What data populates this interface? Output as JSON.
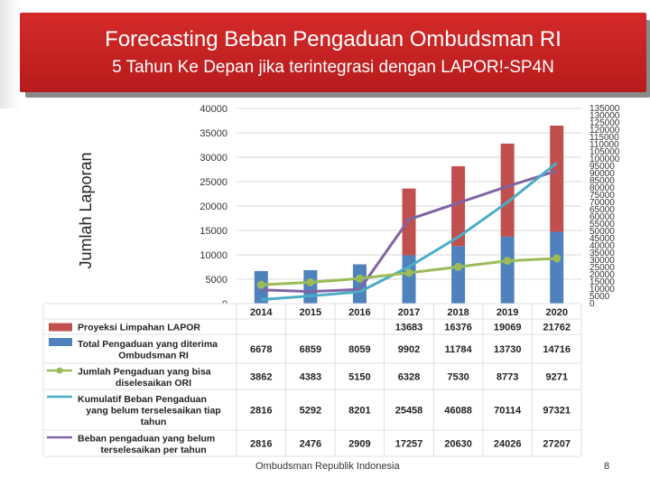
{
  "slide": {
    "title": "Forecasting Beban Pengaduan Ombudsman RI",
    "subtitle": "5 Tahun Ke Depan jika terintegrasi dengan LAPOR!-SP4N",
    "footer_org": "Ombudsman Republik Indonesia",
    "page_number": "8"
  },
  "chart_data": {
    "type": "bar",
    "ylabel": "Jumlah Laporan",
    "categories": [
      "2014",
      "2015",
      "2016",
      "2017",
      "2018",
      "2019",
      "2020"
    ],
    "left_axis": {
      "ylim": [
        0,
        40000
      ],
      "ticks": [
        "0",
        "5000",
        "10000",
        "15000",
        "20000",
        "25000",
        "30000",
        "35000",
        "40000"
      ]
    },
    "right_axis": {
      "ylim": [
        0,
        135000
      ],
      "ticks": [
        "0",
        "5000",
        "10000",
        "15000",
        "20000",
        "25000",
        "30000",
        "35000",
        "40000",
        "45000",
        "50000",
        "55000",
        "60000",
        "65000",
        "70000",
        "75000",
        "80000",
        "85000",
        "90000",
        "95000",
        "100000",
        "105000",
        "110000",
        "115000",
        "120000",
        "125000",
        "130000",
        "135000"
      ]
    },
    "series": [
      {
        "key": "proyeksi",
        "name": "Proyeksi Limpahan LAPOR",
        "kind": "stacked-bar",
        "color": "#c0504d",
        "axis": "left",
        "values": [
          null,
          null,
          null,
          13683,
          16376,
          19069,
          21762
        ],
        "labels": [
          "",
          "",
          "",
          "13683",
          "16376",
          "19069",
          "21762"
        ]
      },
      {
        "key": "total",
        "name": "Total Pengaduan yang diterima Ombudsman RI",
        "kind": "bar",
        "color": "#4f81bd",
        "axis": "left",
        "values": [
          6678,
          6859,
          8059,
          9902,
          11784,
          13730,
          14716
        ],
        "labels": [
          "6678",
          "6859",
          "8059",
          "9902",
          "11784",
          "13730",
          "14716"
        ]
      },
      {
        "key": "selesai",
        "name": "Jumlah Pengaduan yang bisa diselesaikan ORI",
        "kind": "line-marker",
        "color": "#9bbb59",
        "axis": "left",
        "values": [
          3862,
          4383,
          5150,
          6328,
          7530,
          8773,
          9271
        ],
        "labels": [
          "3862",
          "4383",
          "5150",
          "6328",
          "7530",
          "8773",
          "9271"
        ]
      },
      {
        "key": "kumulatif",
        "name": "Kumulatif Beban Pengaduan yang belum terselesaikan tiap tahun",
        "kind": "line",
        "color": "#4bacc6",
        "axis": "right",
        "values": [
          2816,
          5292,
          8201,
          25458,
          46088,
          70114,
          97321
        ],
        "labels": [
          "2816",
          "5292",
          "8201",
          "25458",
          "46088",
          "70114",
          "97321"
        ]
      },
      {
        "key": "beban",
        "name": "Beban pengaduan yang belum terselesaikan per tahun",
        "kind": "line",
        "color": "#8064a2",
        "axis": "left",
        "values": [
          2816,
          2476,
          2909,
          17257,
          20630,
          24026,
          27207
        ],
        "labels": [
          "2816",
          "2476",
          "2909",
          "17257",
          "20630",
          "24026",
          "27207"
        ]
      }
    ],
    "legend_lines": [
      [
        "Proyeksi Limpahan LAPOR"
      ],
      [
        "Total Pengaduan yang diterima",
        "Ombudsman RI"
      ],
      [
        "Jumlah Pengaduan yang bisa",
        "diselesaikan ORI"
      ],
      [
        "Kumulatif Beban Pengaduan",
        "yang belum terselesaikan tiap",
        "tahun"
      ],
      [
        "Beban pengaduan yang belum",
        "terselesaikan per tahun"
      ]
    ]
  }
}
